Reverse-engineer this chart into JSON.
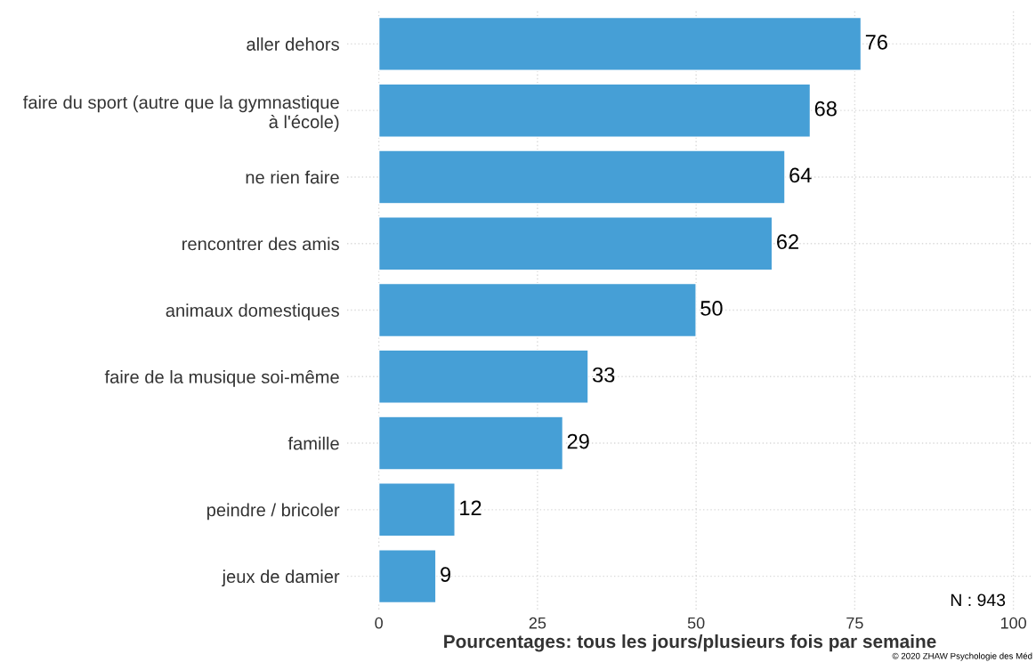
{
  "chart_data": {
    "type": "bar",
    "orientation": "horizontal",
    "categories": [
      "aller dehors",
      "faire du sport (autre que la gymnastique\nà l'école)",
      "ne rien faire",
      "rencontrer des amis",
      "animaux domestiques",
      "faire de la musique soi-même",
      "famille",
      "peindre / bricoler",
      "jeux de damier"
    ],
    "values": [
      76,
      68,
      64,
      62,
      50,
      33,
      29,
      12,
      9
    ],
    "color": "#469fd6",
    "xlabel": "Pourcentages: tous les jours/plusieurs fois par semaine",
    "xlim": [
      -5,
      103
    ],
    "xticks": [
      0,
      25,
      50,
      75,
      100
    ],
    "data_labels": true,
    "grid": true,
    "legend": false,
    "annotations": [
      "N : 943",
      "© 2020 ZHAW Psychologie des Méd"
    ]
  }
}
